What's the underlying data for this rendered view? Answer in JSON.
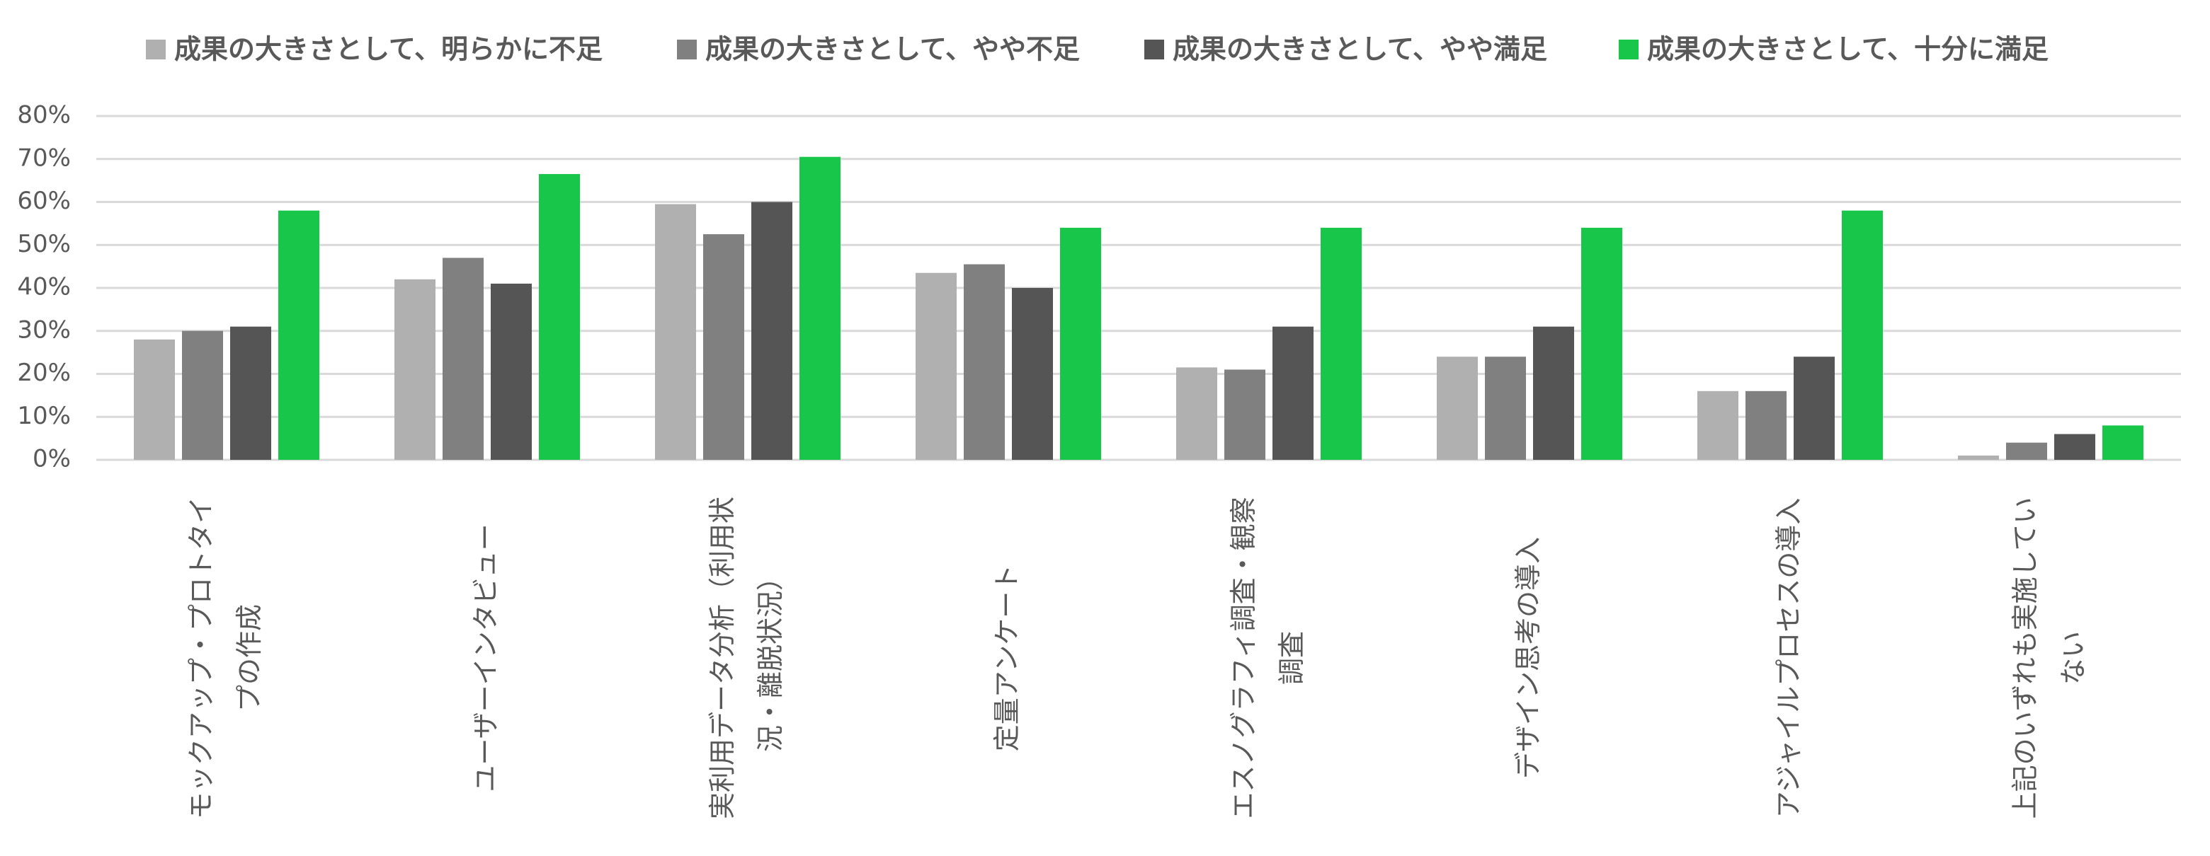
{
  "chart_data": {
    "type": "bar",
    "categories": [
      "モックアップ・プロトタイプの作成",
      "ユーザーインタビュー",
      "実利用データ分析（利用状況・離脱状況）",
      "定量アンケート",
      "エスノグラフィ調査・観察調査",
      "デザイン思考の導入",
      "アジャイルプロセスの導入",
      "上記のいずれも実施していない"
    ],
    "series": [
      {
        "name": "成果の大きさとして、明らかに不足",
        "color": "#b0b0b0",
        "values": [
          28,
          42,
          59.5,
          43.5,
          21.5,
          24,
          16,
          1
        ]
      },
      {
        "name": "成果の大きさとして、やや不足",
        "color": "#808080",
        "values": [
          30,
          47,
          52.5,
          45.5,
          21,
          24,
          16,
          4
        ]
      },
      {
        "name": "成果の大きさとして、やや満足",
        "color": "#555555",
        "values": [
          31,
          41,
          60,
          40,
          31,
          31,
          24,
          6
        ]
      },
      {
        "name": "成果の大きさとして、十分に満足",
        "color": "#18c74a",
        "values": [
          58,
          66.5,
          70.5,
          54,
          54,
          54,
          58,
          8
        ]
      }
    ],
    "ylim": [
      0,
      80
    ],
    "yticks": [
      {
        "value": 0,
        "label": "0%"
      },
      {
        "value": 10,
        "label": "10%"
      },
      {
        "value": 20,
        "label": "20%"
      },
      {
        "value": 30,
        "label": "30%"
      },
      {
        "value": 40,
        "label": "40%"
      },
      {
        "value": 50,
        "label": "50%"
      },
      {
        "value": 60,
        "label": "60%"
      },
      {
        "value": 70,
        "label": "70%"
      },
      {
        "value": 80,
        "label": "80%"
      }
    ],
    "grid": true,
    "legend": "top"
  }
}
